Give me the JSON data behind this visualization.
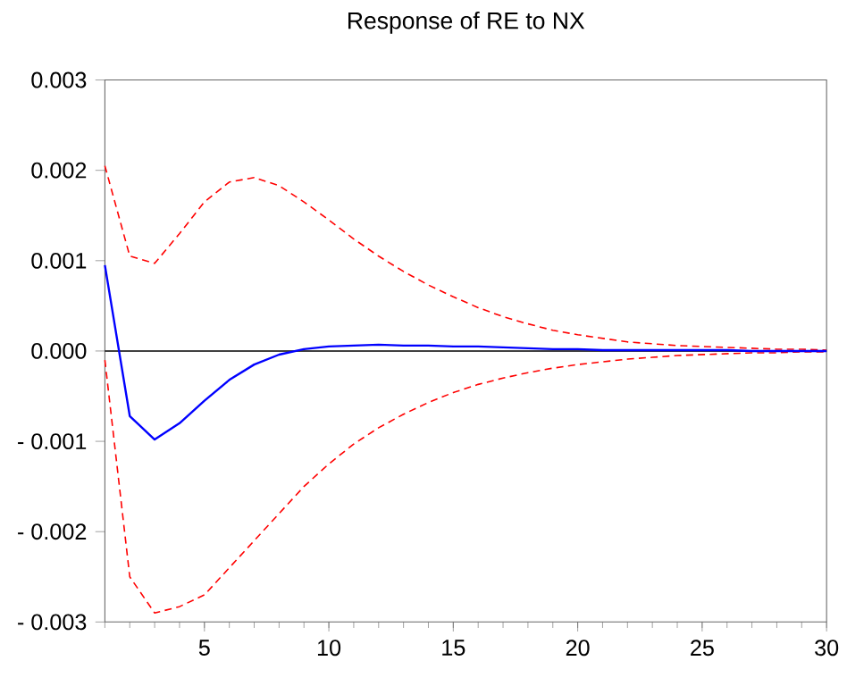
{
  "chart_data": {
    "type": "line",
    "title": "Response of RE to NX",
    "x": [
      1,
      2,
      3,
      4,
      5,
      6,
      7,
      8,
      9,
      10,
      11,
      12,
      13,
      14,
      15,
      16,
      17,
      18,
      19,
      20,
      21,
      22,
      23,
      24,
      25,
      26,
      27,
      28,
      29,
      30
    ],
    "series": [
      {
        "color": "#0000ff",
        "line_style": "solid",
        "values": [
          0.00095,
          -0.00072,
          -0.00098,
          -0.0008,
          -0.00055,
          -0.00032,
          -0.00015,
          -4e-05,
          2e-05,
          5e-05,
          6e-05,
          7e-05,
          6e-05,
          6e-05,
          5e-05,
          5e-05,
          4e-05,
          3e-05,
          2e-05,
          2e-05,
          1e-05,
          1e-05,
          1e-05,
          1e-05,
          1e-05,
          1e-05,
          0.0,
          0.0,
          0.0,
          0.0
        ]
      },
      {
        "color": "#ff0000",
        "line_style": "dashed",
        "values": [
          0.00205,
          0.00105,
          0.00097,
          0.0013,
          0.00165,
          0.00187,
          0.00192,
          0.00183,
          0.00165,
          0.00145,
          0.00124,
          0.00105,
          0.00088,
          0.00073,
          0.0006,
          0.00048,
          0.00038,
          0.0003,
          0.00023,
          0.00018,
          0.00014,
          0.0001,
          8e-05,
          6e-05,
          5e-05,
          4e-05,
          3e-05,
          2e-05,
          2e-05,
          1e-05
        ]
      },
      {
        "color": "#ff0000",
        "line_style": "dashed",
        "values": [
          -0.0001,
          -0.0025,
          -0.0029,
          -0.00283,
          -0.0027,
          -0.0024,
          -0.0021,
          -0.0018,
          -0.0015,
          -0.00125,
          -0.00103,
          -0.00085,
          -0.0007,
          -0.00057,
          -0.00046,
          -0.00037,
          -0.0003,
          -0.00024,
          -0.00019,
          -0.00015,
          -0.00012,
          -9e-05,
          -7e-05,
          -5e-05,
          -4e-05,
          -3e-05,
          -2e-05,
          -2e-05,
          -1e-05,
          -1e-05
        ]
      }
    ],
    "xlim": [
      1,
      30
    ],
    "xticks": [
      5,
      10,
      15,
      20,
      25,
      30
    ],
    "ylim": [
      -0.003,
      0.003
    ],
    "yticks": [
      {
        "value": -0.003,
        "label": "- 0.003"
      },
      {
        "value": -0.002,
        "label": "- 0.002"
      },
      {
        "value": -0.001,
        "label": "- 0.001"
      },
      {
        "value": 0,
        "label": "0.000"
      },
      {
        "value": 0.001,
        "label": "0.001"
      },
      {
        "value": 0.002,
        "label": "0.002"
      },
      {
        "value": 0.003,
        "label": "0.003"
      }
    ],
    "ref_lines": [
      {
        "axis": "y",
        "value": 0,
        "color": "#000000"
      }
    ],
    "grid": false,
    "marker": "none"
  }
}
